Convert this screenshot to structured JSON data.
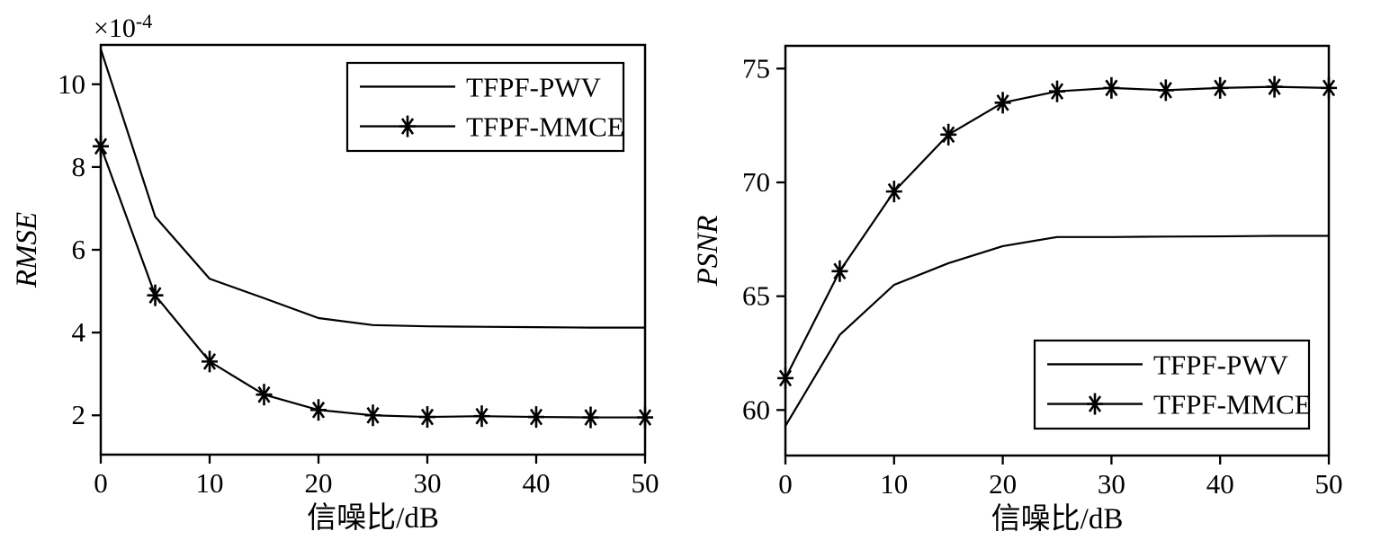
{
  "figure": {
    "background": "#ffffff",
    "line_color": "#000000",
    "description": "Two side-by-side line plots comparing TFPF-PWV and TFPF-MMCE versus SNR"
  },
  "chart_data": [
    {
      "type": "line",
      "title": "",
      "xlabel": "信噪比/dB",
      "ylabel": "RMSE",
      "y_scale_label": {
        "prefix": "×10",
        "exponent": "-4"
      },
      "x": [
        0,
        5,
        10,
        15,
        20,
        25,
        30,
        35,
        40,
        45,
        50
      ],
      "xticks": [
        0,
        10,
        20,
        30,
        40,
        50
      ],
      "yticks": [
        2,
        4,
        6,
        8,
        10
      ],
      "xlim": [
        0,
        50
      ],
      "ylim": [
        1.05,
        10.95
      ],
      "grid": false,
      "legend_position": "upper-right-inside",
      "series": [
        {
          "name": "TFPF-PWV",
          "marker": "none",
          "values": [
            10.85,
            6.8,
            5.3,
            4.83,
            4.35,
            4.18,
            4.15,
            4.14,
            4.13,
            4.12,
            4.12
          ]
        },
        {
          "name": "TFPF-MMCE",
          "marker": "asterisk",
          "values": [
            8.5,
            4.9,
            3.3,
            2.5,
            2.13,
            2.0,
            1.96,
            1.98,
            1.96,
            1.95,
            1.95
          ]
        }
      ]
    },
    {
      "type": "line",
      "title": "",
      "xlabel": "信噪比/dB",
      "ylabel": "PSNR",
      "y_scale_label": null,
      "x": [
        0,
        5,
        10,
        15,
        20,
        25,
        30,
        35,
        40,
        45,
        50
      ],
      "xticks": [
        0,
        10,
        20,
        30,
        40,
        50
      ],
      "yticks": [
        60,
        65,
        70,
        75
      ],
      "xlim": [
        0,
        50
      ],
      "ylim": [
        58,
        76
      ],
      "grid": false,
      "legend_position": "lower-right-inside",
      "series": [
        {
          "name": "TFPF-PWV",
          "marker": "none",
          "values": [
            59.3,
            63.3,
            65.5,
            66.45,
            67.2,
            67.6,
            67.6,
            67.62,
            67.63,
            67.65,
            67.65
          ]
        },
        {
          "name": "TFPF-MMCE",
          "marker": "asterisk",
          "values": [
            61.4,
            66.1,
            69.6,
            72.1,
            73.5,
            74.0,
            74.15,
            74.05,
            74.15,
            74.2,
            74.15
          ]
        }
      ]
    }
  ]
}
